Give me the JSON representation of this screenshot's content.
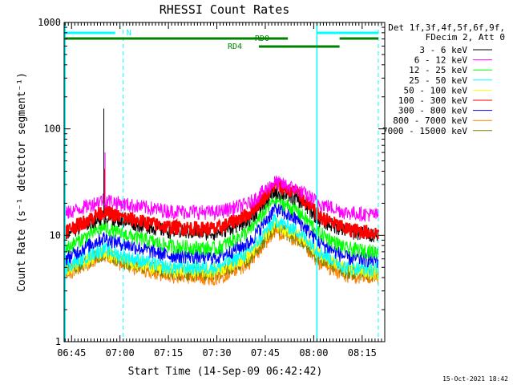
{
  "chart_data": {
    "type": "line",
    "title": "RHESSI Count Rates",
    "xlabel": "Start Time (14-Sep-09 06:42:42)",
    "ylabel": "Count Rate (s⁻¹ detector segment⁻¹)",
    "x_range": [
      "06:42:42",
      "08:22:00"
    ],
    "y_scale": "log",
    "ylim": [
      1,
      1000
    ],
    "x_ticks": [
      "06:45",
      "07:00",
      "07:15",
      "07:30",
      "07:45",
      "08:00",
      "08:15"
    ],
    "y_ticks": [
      "1",
      "10",
      "100",
      "1000"
    ],
    "grid": false,
    "legend_position": "right",
    "legend_header": [
      "Det 1f,3f,4f,5f,6f,9f,",
      "FDecim 2, Att 0"
    ],
    "series": [
      {
        "name": "3 - 6 keV",
        "color": "#000000",
        "x": [
          "06:43",
          "06:50",
          "06:55",
          "07:00",
          "07:15",
          "07:30",
          "07:40",
          "07:48",
          "07:55",
          "08:02",
          "08:10",
          "08:20"
        ],
        "values": [
          10.5,
          13,
          15,
          14,
          11,
          10.5,
          14,
          26,
          22,
          14,
          11,
          10
        ]
      },
      {
        "name": "6 - 12 keV",
        "color": "#ff00ff",
        "x": [
          "06:43",
          "06:50",
          "06:55",
          "07:00",
          "07:15",
          "07:30",
          "07:40",
          "07:48",
          "07:55",
          "08:02",
          "08:10",
          "08:20"
        ],
        "values": [
          16,
          19,
          22,
          20,
          17,
          16.5,
          20,
          32,
          27,
          20,
          16.5,
          15.5
        ]
      },
      {
        "name": "12 - 25 keV",
        "color": "#00ff00",
        "x": [
          "06:43",
          "06:50",
          "06:55",
          "07:00",
          "07:15",
          "07:30",
          "07:40",
          "07:48",
          "07:55",
          "08:02",
          "08:10",
          "08:20"
        ],
        "values": [
          7.5,
          10,
          12,
          10.5,
          8,
          7.5,
          11,
          22,
          17,
          10.5,
          7.5,
          7
        ]
      },
      {
        "name": "25 - 50 keV",
        "color": "#00ffff",
        "x": [
          "06:43",
          "06:50",
          "06:55",
          "07:00",
          "07:15",
          "07:30",
          "07:40",
          "07:48",
          "07:55",
          "08:02",
          "08:10",
          "08:20"
        ],
        "values": [
          5,
          6.5,
          7.5,
          6.5,
          5,
          5,
          7,
          14,
          11,
          7,
          5,
          4.8
        ]
      },
      {
        "name": "50 - 100 keV",
        "color": "#ffff00",
        "x": [
          "06:43",
          "06:50",
          "06:55",
          "07:00",
          "07:15",
          "07:30",
          "07:40",
          "07:48",
          "07:55",
          "08:02",
          "08:10",
          "08:20"
        ],
        "values": [
          4.8,
          6,
          7,
          6,
          4.7,
          4.7,
          6.5,
          13,
          10,
          6.5,
          4.8,
          4.5
        ]
      },
      {
        "name": "100 - 300 keV",
        "color": "#ff0000",
        "x": [
          "06:43",
          "06:50",
          "06:55",
          "07:00",
          "07:15",
          "07:30",
          "07:40",
          "07:48",
          "07:55",
          "08:02",
          "08:10",
          "08:20"
        ],
        "values": [
          11,
          14,
          17,
          15,
          12,
          11.5,
          16,
          30,
          25,
          15,
          11.5,
          10.5
        ]
      },
      {
        "name": "300 - 800 keV",
        "color": "#0000ff",
        "x": [
          "06:43",
          "06:50",
          "06:55",
          "07:00",
          "07:15",
          "07:30",
          "07:40",
          "07:48",
          "07:55",
          "08:02",
          "08:10",
          "08:20"
        ],
        "values": [
          6,
          8,
          9.5,
          8.5,
          6.5,
          6.2,
          8.5,
          18,
          14,
          8.5,
          6.2,
          5.8
        ]
      },
      {
        "name": "800 - 7000 keV",
        "color": "#ff8000",
        "x": [
          "06:43",
          "06:50",
          "06:55",
          "07:00",
          "07:15",
          "07:30",
          "07:40",
          "07:48",
          "07:55",
          "08:02",
          "08:10",
          "08:20"
        ],
        "values": [
          4.2,
          5.5,
          6.5,
          5.5,
          4.2,
          4.0,
          5.5,
          11,
          9,
          5.5,
          4.2,
          4.0
        ]
      },
      {
        "name": "7000 - 15000 keV",
        "color": "#808000",
        "x": [
          "06:43",
          "06:50",
          "06:55",
          "07:00",
          "07:15",
          "07:30",
          "07:40",
          "07:48",
          "07:55",
          "08:02",
          "08:10",
          "08:20"
        ],
        "values": [
          4.6,
          5.8,
          6.8,
          5.8,
          4.5,
          4.4,
          6,
          12,
          9.5,
          6,
          4.6,
          4.3
        ]
      }
    ],
    "spike": {
      "x": "06:55",
      "peak": 155,
      "secondary": 60
    },
    "annotations": {
      "vertical_solid_lines": [
        "06:43",
        "08:01"
      ],
      "vertical_dashed_lines": [
        "07:01",
        "08:20"
      ],
      "night_label": "N",
      "night_intervals": [
        [
          "06:43",
          "07:01"
        ],
        [
          "08:01",
          "08:20"
        ]
      ],
      "rd_label_top": "RD0",
      "rd_label_bottom": "RD4",
      "rd_top_intervals": [
        [
          "06:43",
          "07:52"
        ],
        [
          "08:08",
          "08:20"
        ]
      ],
      "rd_bottom_intervals": [
        [
          "07:43",
          "08:08"
        ]
      ]
    }
  },
  "footer": {
    "date_stamp": "15-Oct-2021 18:42"
  }
}
